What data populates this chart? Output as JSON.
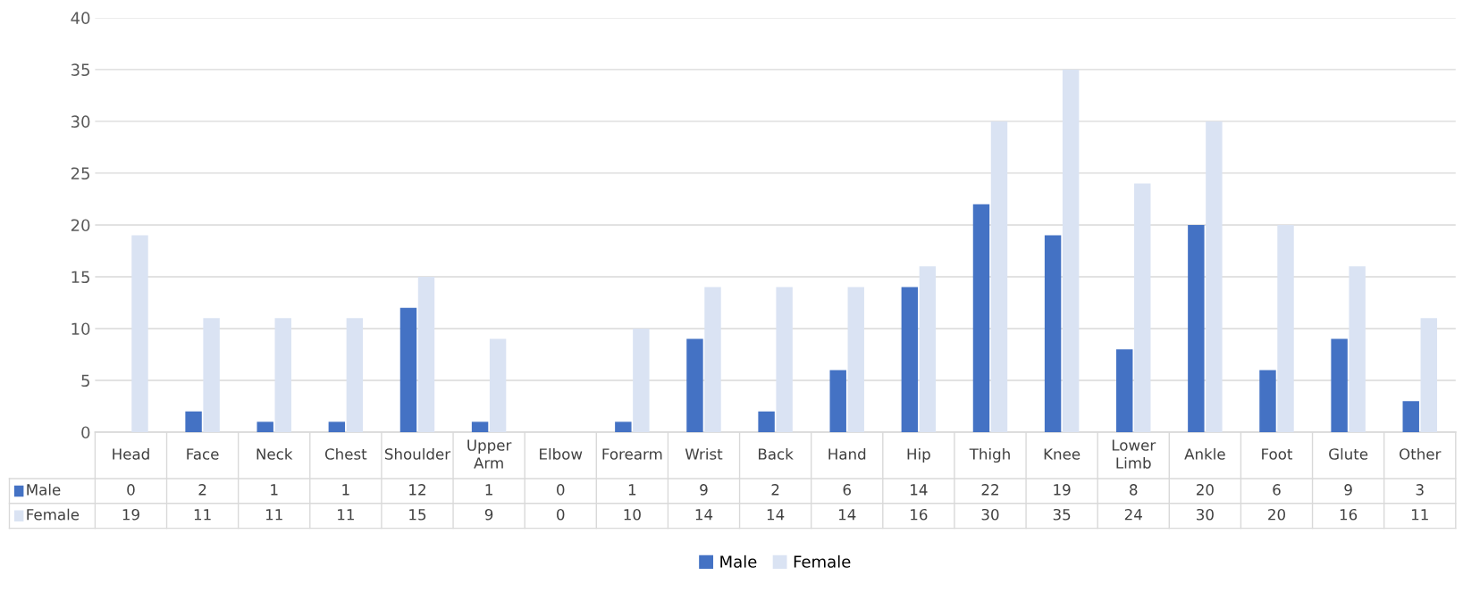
{
  "chart_data": {
    "type": "bar",
    "categories": [
      "Head",
      "Face",
      "Neck",
      "Chest",
      "Shoulder",
      "Upper Arm",
      "Elbow",
      "Forearm",
      "Wrist",
      "Back",
      "Hand",
      "Hip",
      "Thigh",
      "Knee",
      "Lower Limb",
      "Ankle",
      "Foot",
      "Glute",
      "Other"
    ],
    "series": [
      {
        "name": "Male",
        "color": "#4472c4",
        "values": [
          0,
          2,
          1,
          1,
          12,
          1,
          0,
          1,
          9,
          2,
          6,
          14,
          22,
          19,
          8,
          20,
          6,
          9,
          3
        ]
      },
      {
        "name": "Female",
        "color": "#dae3f3",
        "values": [
          19,
          11,
          11,
          11,
          15,
          9,
          0,
          10,
          14,
          14,
          14,
          16,
          30,
          35,
          24,
          30,
          20,
          16,
          11
        ]
      }
    ],
    "ylim": [
      0,
      40
    ],
    "yticks": [
      0,
      5,
      10,
      15,
      20,
      25,
      30,
      35,
      40
    ],
    "grid": "y",
    "legend": "bottom",
    "data_labels": true
  }
}
